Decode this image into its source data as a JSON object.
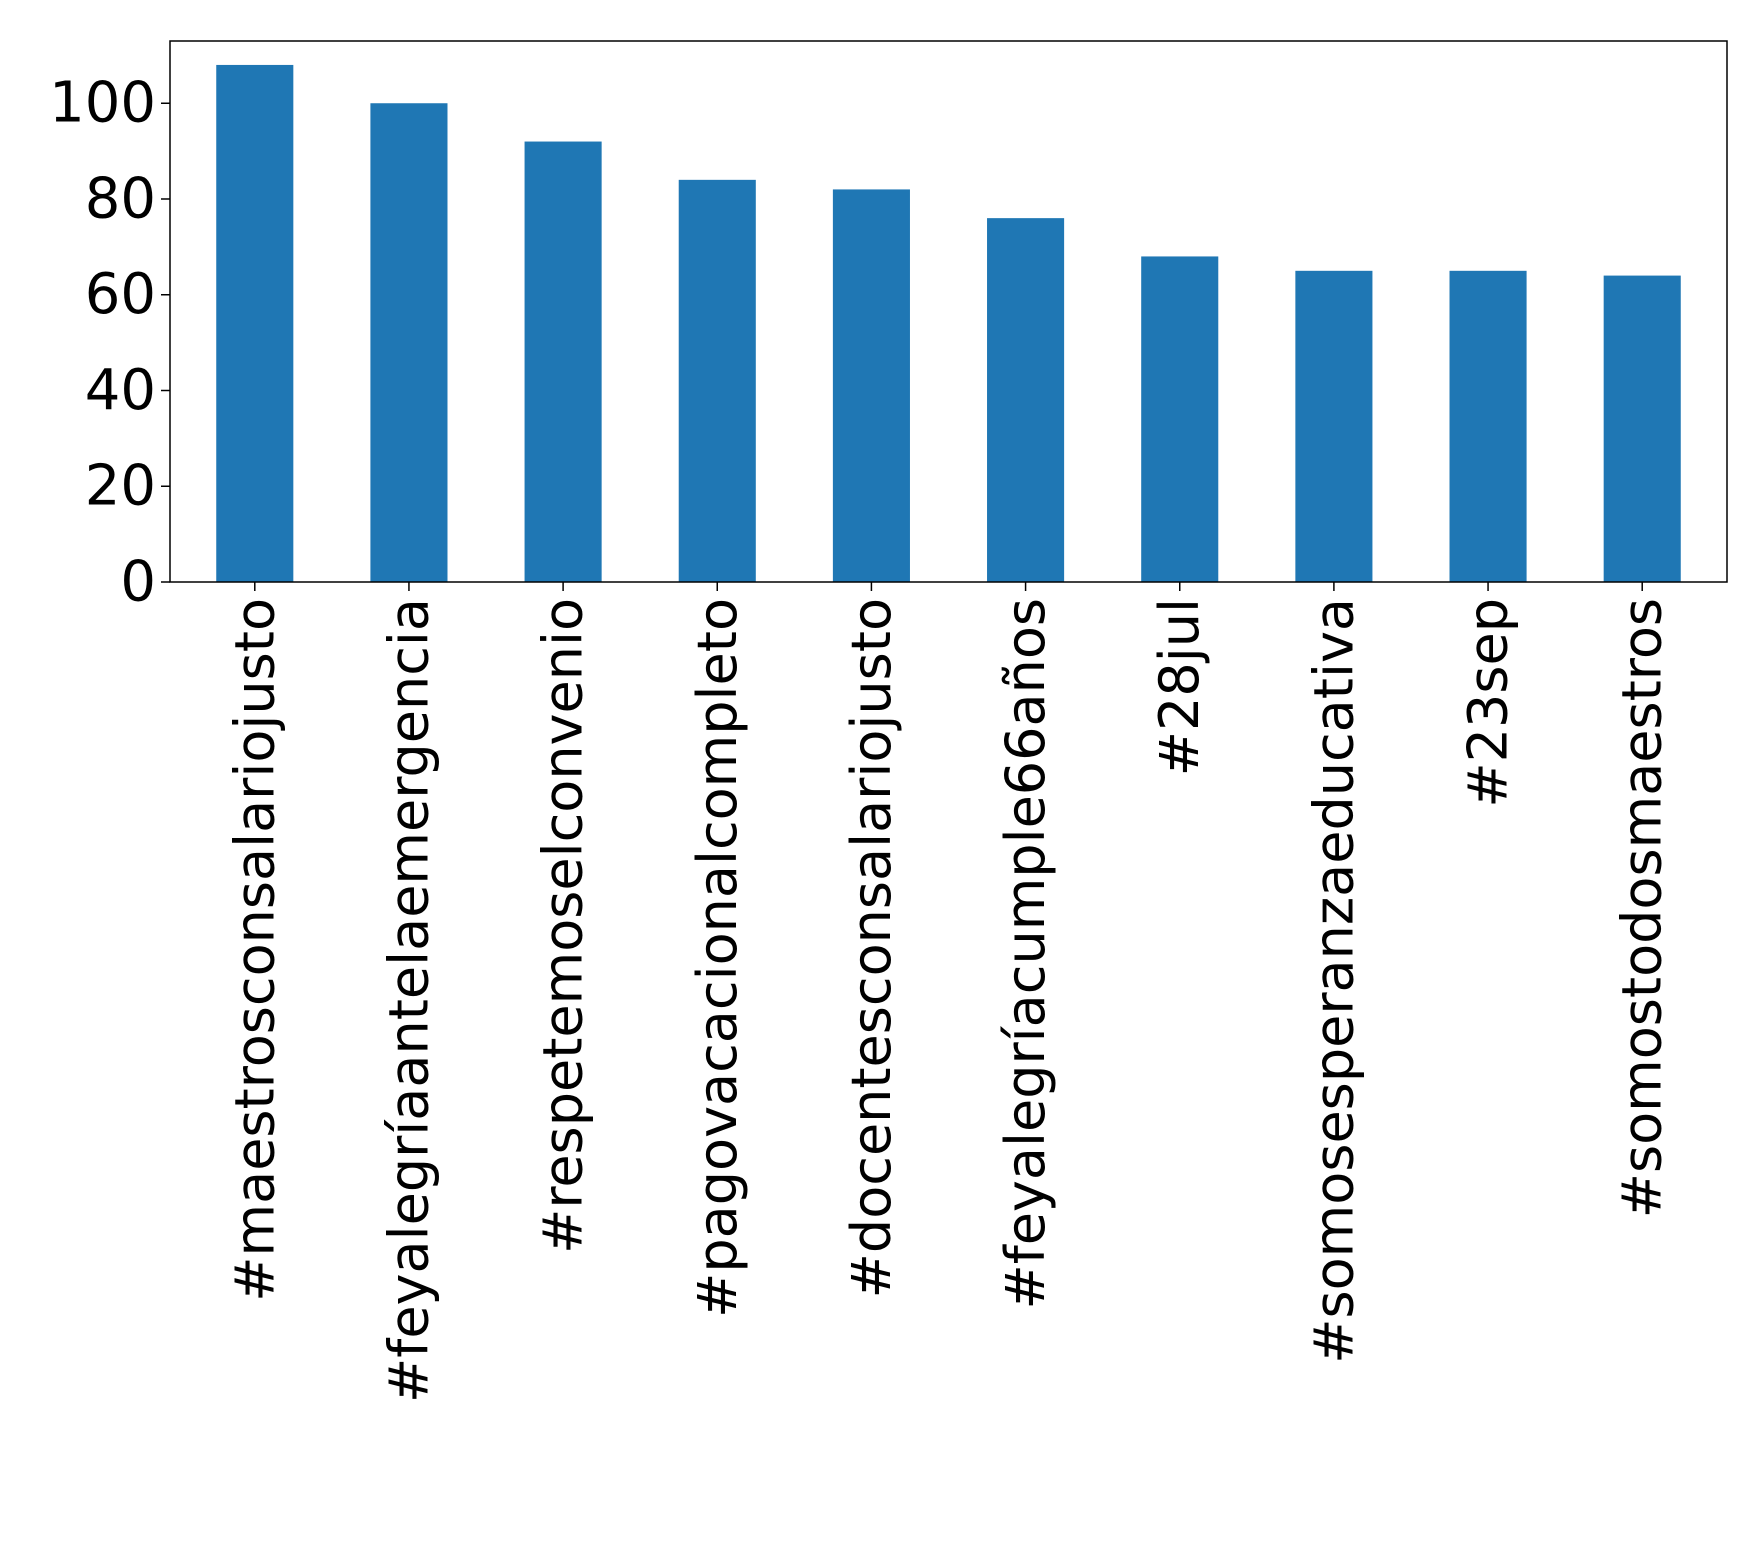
{
  "chart_data": {
    "type": "bar",
    "title": "",
    "xlabel": "",
    "ylabel": "",
    "categories": [
      "#maestrosconsalariojusto",
      "#feyalegríaantelaemergencia",
      "#respetemoselconvenio",
      "#pagovacacionalcompleto",
      "#docentesconsalariojusto",
      "#feyalegríacumple66años",
      "#28jul",
      "#somosesperanzaeducativa",
      "#23sep",
      "#somostodosmaestros"
    ],
    "values": [
      108,
      100,
      92,
      84,
      82,
      76,
      68,
      65,
      65,
      64
    ],
    "ylim": [
      0,
      113
    ],
    "yticks": [
      0,
      20,
      40,
      60,
      80,
      100
    ],
    "ytick_labels": [
      "0",
      "20",
      "40",
      "60",
      "80",
      "100"
    ],
    "bar_color": "#1f77b4",
    "grid": false,
    "legend": "none"
  }
}
